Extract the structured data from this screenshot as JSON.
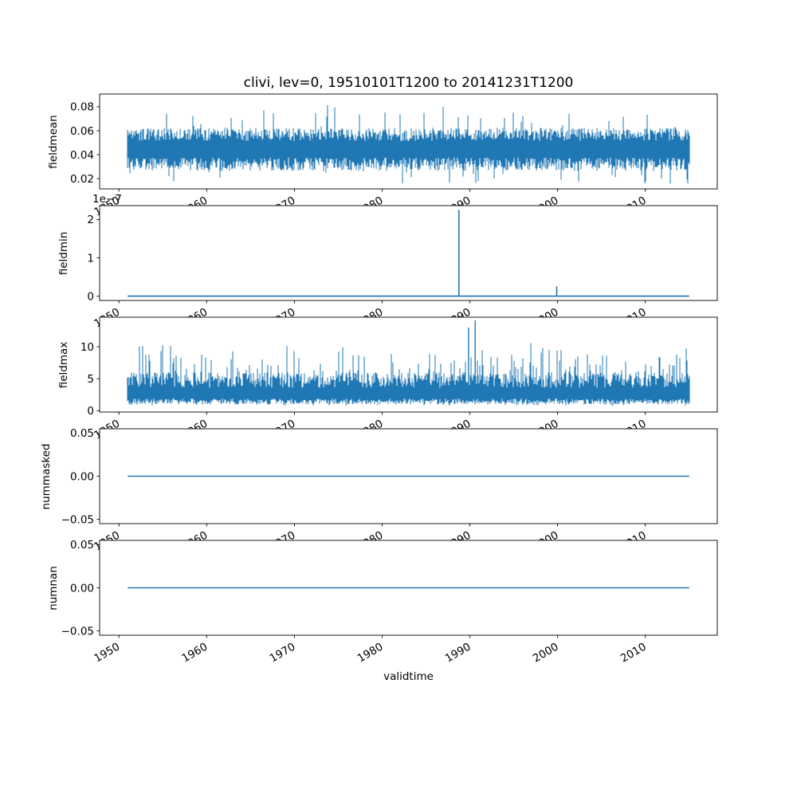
{
  "figure": {
    "title": "clivi, lev=0, 19510101T1200 to 20141231T1200",
    "xlabel": "validtime",
    "line_color": "#1f77b4",
    "background": "#ffffff",
    "axis_color": "#000000"
  },
  "x_axis": {
    "label": "validtime",
    "xlim": [
      1947.8,
      2018.2
    ],
    "data_range": [
      1951.0,
      2015.0
    ],
    "ticks": [
      1950,
      1960,
      1970,
      1980,
      1990,
      2000,
      2010
    ],
    "tick_labels": [
      "1950",
      "1960",
      "1970",
      "1980",
      "1990",
      "2000",
      "2010"
    ]
  },
  "chart_data": [
    {
      "type": "line",
      "ylabel": "fieldmean",
      "ylim": [
        0.0114,
        0.0906
      ],
      "yticks": [
        0.02,
        0.04,
        0.06,
        0.08
      ],
      "ytick_labels": [
        "0.02",
        "0.04",
        "0.06",
        "0.08"
      ],
      "series": {
        "name": "fieldmean",
        "kind": "band",
        "summary": "dense daily noise band",
        "typical_range": [
          0.025,
          0.065
        ],
        "full_range": [
          0.016,
          0.087
        ],
        "lo_base": 0.0375,
        "lo_rand": 0.011,
        "hi_base": 0.0515,
        "hi_rand": 0.011,
        "spike_prob": 0.05,
        "spike_lo": 0.016,
        "spike_hi": 0.022,
        "clip": [
          0.016,
          0.0865
        ]
      }
    },
    {
      "type": "line",
      "ylabel": "fieldmin",
      "offset_text": "1e−7",
      "ylim": [
        -1.12e-08,
        2.3625e-07
      ],
      "yticks": [
        0,
        1e-07,
        2e-07
      ],
      "ytick_labels": [
        "0",
        "1",
        "2"
      ],
      "series": {
        "name": "fieldmin",
        "kind": "flat_spikes",
        "flat_value": 0,
        "spikes": [
          {
            "x": 1988.75,
            "y": 2.25e-07
          },
          {
            "x": 1999.9,
            "y": 2.5e-08
          }
        ]
      }
    },
    {
      "type": "line",
      "ylabel": "fieldmax",
      "ylim": [
        -0.2,
        14.6
      ],
      "yticks": [
        0,
        5,
        10
      ],
      "ytick_labels": [
        "0",
        "5",
        "10"
      ],
      "series": {
        "name": "fieldmax",
        "kind": "band",
        "summary": "dense spiky daily maxima",
        "typical_range": [
          1.0,
          7.0
        ],
        "full_range": [
          0.8,
          14.1
        ],
        "lo_base": 1.9,
        "lo_rand": 0.9,
        "hi_base": 3.6,
        "hi_rand": 2.4,
        "spike_prob": 0.22,
        "spike_lo": 0.25,
        "spike_hi": 4.8,
        "clip": [
          0.75,
          13.0
        ],
        "spikes": [
          {
            "x": 1990.6,
            "y": 14.1,
            "base": 2.0
          },
          {
            "x": 1989.85,
            "y": 13.0,
            "base": 2.0
          }
        ]
      }
    },
    {
      "type": "line",
      "ylabel": "nummasked",
      "ylim": [
        -0.055,
        0.055
      ],
      "yticks": [
        -0.05,
        0,
        0.05
      ],
      "ytick_labels": [
        "−0.05",
        "0.00",
        "0.05"
      ],
      "series": {
        "name": "nummasked",
        "kind": "flat",
        "flat_value": 0
      }
    },
    {
      "type": "line",
      "ylabel": "numnan",
      "ylim": [
        -0.055,
        0.055
      ],
      "yticks": [
        -0.05,
        0,
        0.05
      ],
      "ytick_labels": [
        "−0.05",
        "0.00",
        "0.05"
      ],
      "series": {
        "name": "numnan",
        "kind": "flat",
        "flat_value": 0
      }
    }
  ]
}
